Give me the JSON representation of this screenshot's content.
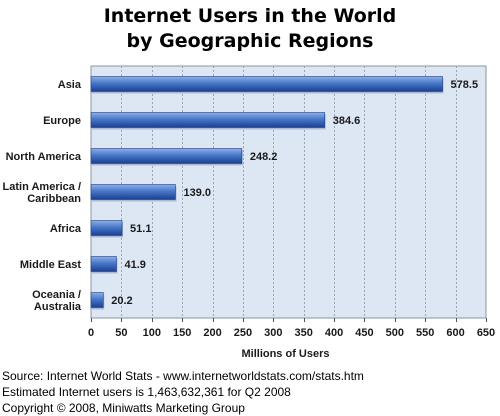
{
  "chart_data": {
    "type": "bar",
    "orientation": "horizontal",
    "title": [
      "Internet Users in the World",
      "by Geographic Regions"
    ],
    "xlabel": "Millions of Users",
    "ylabel": "",
    "categories": [
      [
        "Asia"
      ],
      [
        "Europe"
      ],
      [
        "North America"
      ],
      [
        "Latin America /",
        "Caribbean"
      ],
      [
        "Africa"
      ],
      [
        "Middle East"
      ],
      [
        "Oceania  /",
        "Australia"
      ]
    ],
    "values": [
      578.5,
      384.6,
      248.2,
      139.0,
      51.1,
      41.9,
      20.2
    ],
    "value_labels": [
      "578.5",
      "384.6",
      "248.2",
      "139.0",
      "51.1",
      "41.9",
      "20.2"
    ],
    "xlim": [
      0,
      650
    ],
    "xticks": [
      0,
      50,
      100,
      150,
      200,
      250,
      300,
      350,
      400,
      450,
      500,
      550,
      600,
      650
    ],
    "grid": true,
    "colors": {
      "plot_background": "#dde7f3",
      "bar_dark": "#1d3f8f",
      "bar_mid": "#4677c9",
      "bar_light": "#8fb0e6",
      "grid": "#9aa6b5"
    }
  },
  "footer": {
    "source": "Source: Internet World Stats - www.internetworldstats.com/stats.htm",
    "estimate": "Estimated Internet users is 1,463,632,361 for Q2 2008",
    "copyright": "Copyright © 2008, Miniwatts Marketing Group"
  }
}
